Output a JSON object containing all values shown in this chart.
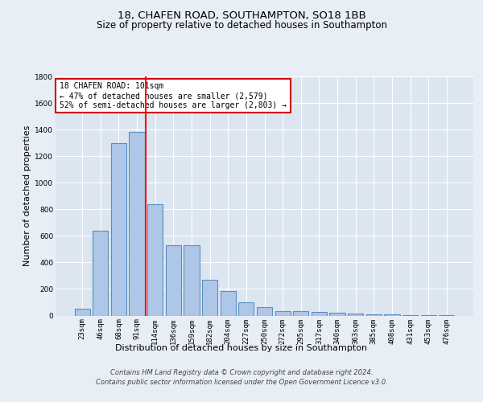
{
  "title": "18, CHAFEN ROAD, SOUTHAMPTON, SO18 1BB",
  "subtitle": "Size of property relative to detached houses in Southampton",
  "xlabel": "Distribution of detached houses by size in Southampton",
  "ylabel": "Number of detached properties",
  "categories": [
    "23sqm",
    "46sqm",
    "68sqm",
    "91sqm",
    "114sqm",
    "136sqm",
    "159sqm",
    "182sqm",
    "204sqm",
    "227sqm",
    "250sqm",
    "272sqm",
    "295sqm",
    "317sqm",
    "340sqm",
    "363sqm",
    "385sqm",
    "408sqm",
    "431sqm",
    "453sqm",
    "476sqm"
  ],
  "values": [
    50,
    640,
    1300,
    1380,
    840,
    530,
    530,
    270,
    185,
    100,
    65,
    35,
    35,
    30,
    20,
    15,
    10,
    10,
    5,
    5,
    5
  ],
  "bar_color": "#aec6e8",
  "bar_edgecolor": "#5a8fc0",
  "bar_linewidth": 0.8,
  "red_line_x": 3.5,
  "annotation_text_line1": "18 CHAFEN ROAD: 101sqm",
  "annotation_text_line2": "← 47% of detached houses are smaller (2,579)",
  "annotation_text_line3": "52% of semi-detached houses are larger (2,803) →",
  "annotation_box_facecolor": "#ffffff",
  "annotation_box_edgecolor": "#cc0000",
  "ylim": [
    0,
    1800
  ],
  "yticks": [
    0,
    200,
    400,
    600,
    800,
    1000,
    1200,
    1400,
    1600,
    1800
  ],
  "background_color": "#e8eef5",
  "plot_bg_color": "#dce6f0",
  "grid_color": "#ffffff",
  "footer_line1": "Contains HM Land Registry data © Crown copyright and database right 2024.",
  "footer_line2": "Contains public sector information licensed under the Open Government Licence v3.0.",
  "title_fontsize": 9.5,
  "subtitle_fontsize": 8.5,
  "xlabel_fontsize": 8,
  "ylabel_fontsize": 8,
  "tick_fontsize": 6.5,
  "annotation_fontsize": 7,
  "footer_fontsize": 6
}
